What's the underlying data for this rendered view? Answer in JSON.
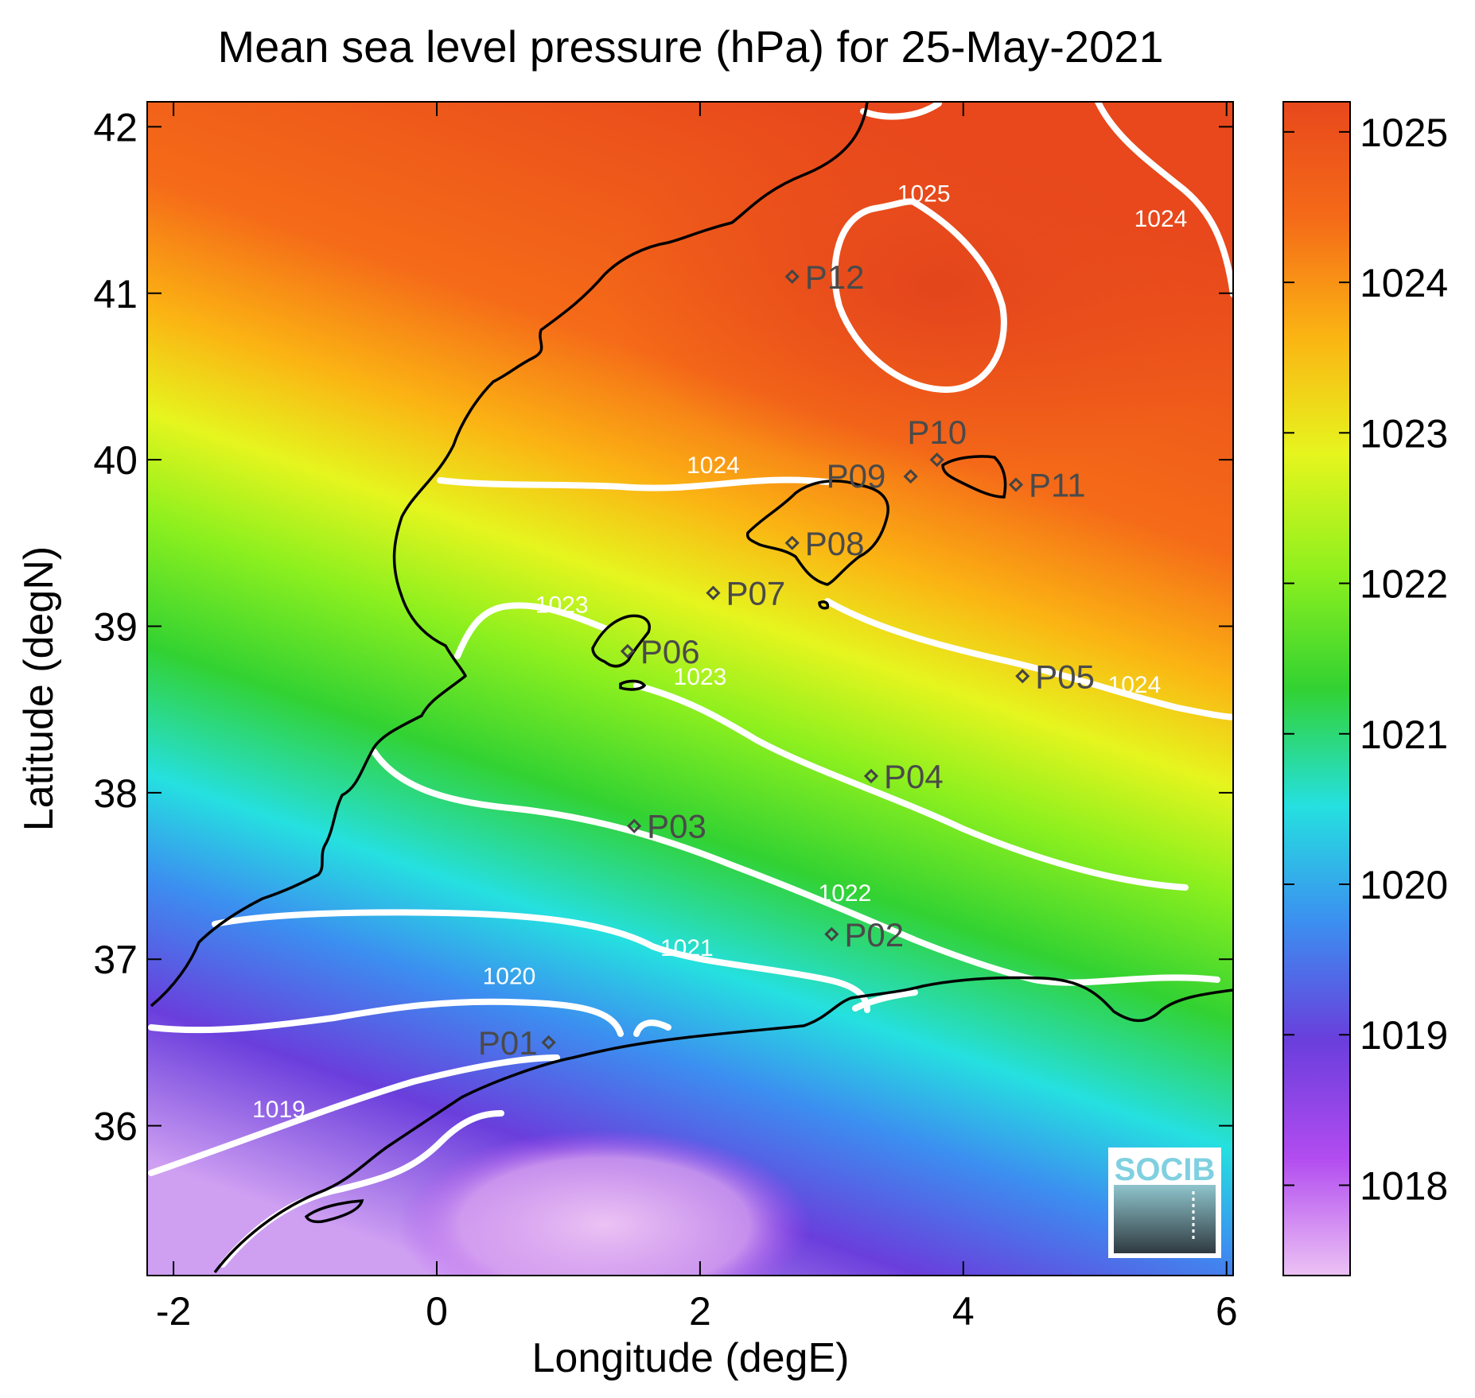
{
  "title": "Mean sea level pressure (hPa) for 25-May-2021",
  "chart_data": {
    "type": "heatmap",
    "variable": "Mean sea level pressure",
    "units": "hPa",
    "date": "25-May-2021",
    "xlabel": "Longitude (degE)",
    "ylabel": "Latitude (degN)",
    "xlim": [
      -2.2,
      6.05
    ],
    "ylim": [
      35.1,
      42.15
    ],
    "x_ticks": [
      -2,
      0,
      2,
      4,
      6
    ],
    "y_ticks": [
      36,
      37,
      38,
      39,
      40,
      41,
      42
    ],
    "colorbar": {
      "range": [
        1017.4,
        1025.2
      ],
      "ticks": [
        1018,
        1019,
        1020,
        1021,
        1022,
        1023,
        1024,
        1025
      ],
      "colors": [
        "#ecc2f4",
        "#b24cf0",
        "#6a3edc",
        "#3c8ef0",
        "#25e0e0",
        "#32d232",
        "#8ef01e",
        "#e6f51e",
        "#fbb413",
        "#f56b18",
        "#e8481c"
      ]
    },
    "isobar_labels": [
      {
        "value": "1019",
        "lon": -1.2,
        "lat": 36.05
      },
      {
        "value": "1020",
        "lon": 0.55,
        "lat": 36.85
      },
      {
        "value": "1021",
        "lon": 1.9,
        "lat": 37.02
      },
      {
        "value": "1022",
        "lon": 3.1,
        "lat": 37.35
      },
      {
        "value": "1023",
        "lon": 0.95,
        "lat": 39.08
      },
      {
        "value": "1023",
        "lon": 2.0,
        "lat": 38.65
      },
      {
        "value": "1024",
        "lon": 2.1,
        "lat": 39.92
      },
      {
        "value": "1024",
        "lon": 5.3,
        "lat": 38.6
      },
      {
        "value": "1024",
        "lon": 5.5,
        "lat": 41.4
      },
      {
        "value": "1025",
        "lon": 3.7,
        "lat": 41.55
      }
    ],
    "stations": [
      {
        "name": "P01",
        "lon": 0.85,
        "lat": 36.5
      },
      {
        "name": "P02",
        "lon": 3.0,
        "lat": 37.15
      },
      {
        "name": "P03",
        "lon": 1.5,
        "lat": 37.8
      },
      {
        "name": "P04",
        "lon": 3.3,
        "lat": 38.1
      },
      {
        "name": "P05",
        "lon": 4.45,
        "lat": 38.7
      },
      {
        "name": "P06",
        "lon": 1.45,
        "lat": 38.85
      },
      {
        "name": "P07",
        "lon": 2.1,
        "lat": 39.2
      },
      {
        "name": "P08",
        "lon": 2.7,
        "lat": 39.5
      },
      {
        "name": "P09",
        "lon": 3.6,
        "lat": 39.9
      },
      {
        "name": "P10",
        "lon": 3.8,
        "lat": 40.0
      },
      {
        "name": "P11",
        "lon": 4.4,
        "lat": 39.85
      },
      {
        "name": "P12",
        "lon": 2.7,
        "lat": 41.1
      }
    ],
    "logo": "SOCIB"
  }
}
